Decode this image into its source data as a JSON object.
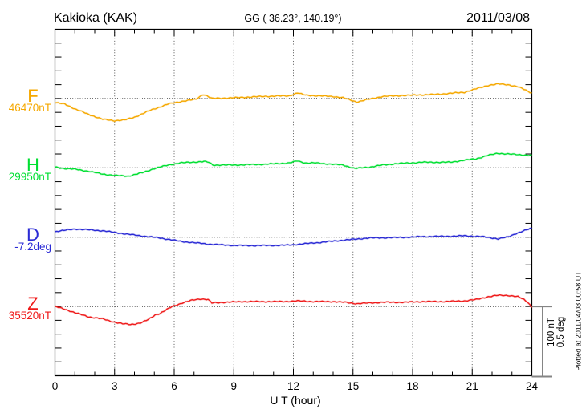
{
  "header": {
    "station": "Kakioka (KAK)",
    "coords": "GG ( 36.23°, 140.19°)",
    "date": "2011/03/08"
  },
  "x_axis": {
    "label": "U T (hour)",
    "tick_labels": [
      "0",
      "3",
      "6",
      "9",
      "12",
      "15",
      "18",
      "21",
      "24"
    ],
    "range_hours": [
      0,
      24
    ]
  },
  "scale_bar": {
    "label": "100 nT\n0.5 deg"
  },
  "plotted_at": "Plotted at 2011/04/08 00:58 UT",
  "chart_data": {
    "type": "line",
    "title": "Kakioka (KAK) magnetogram",
    "xlabel": "U T (hour)",
    "x_range": [
      0,
      24
    ],
    "grid": "dotted vertical every 3 hours, dotted horizontal at each component baseline",
    "y_scale": {
      "nT_per_scalebar": 100,
      "deg_per_scalebar": 0.5
    },
    "series": [
      {
        "name": "F",
        "unit": "nT",
        "base_label": "46470nT",
        "base_value": 46470,
        "color": "#F5A800",
        "points": [
          [
            0,
            46464
          ],
          [
            0.5,
            46462
          ],
          [
            1,
            46455
          ],
          [
            1.7,
            46447
          ],
          [
            2.4,
            46440
          ],
          [
            3,
            46438
          ],
          [
            3.5,
            46439
          ],
          [
            4,
            46443
          ],
          [
            4.8,
            46453
          ],
          [
            5.3,
            46458
          ],
          [
            5.7,
            46462
          ],
          [
            6.4,
            46466
          ],
          [
            7.1,
            46469
          ],
          [
            7.45,
            46476
          ],
          [
            7.65,
            46474
          ],
          [
            7.9,
            46470
          ],
          [
            9,
            46471
          ],
          [
            10.5,
            46473
          ],
          [
            11.8,
            46474
          ],
          [
            12.2,
            46478
          ],
          [
            12.6,
            46475
          ],
          [
            13.1,
            46474
          ],
          [
            14,
            46473
          ],
          [
            14.5,
            46471
          ],
          [
            15.2,
            46465
          ],
          [
            15.8,
            46469
          ],
          [
            16.5,
            46473
          ],
          [
            17.2,
            46474
          ],
          [
            18.1,
            46475
          ],
          [
            19.2,
            46476
          ],
          [
            20.6,
            46479
          ],
          [
            21.2,
            46484
          ],
          [
            21.8,
            46489
          ],
          [
            22.3,
            46491
          ],
          [
            22.8,
            46490
          ],
          [
            23.3,
            46487
          ],
          [
            23.7,
            46482
          ],
          [
            24,
            46478
          ]
        ]
      },
      {
        "name": "H",
        "unit": "nT",
        "base_label": "29950nT",
        "base_value": 29950,
        "color": "#00DF32",
        "points": [
          [
            0,
            29951
          ],
          [
            0.5,
            29949
          ],
          [
            1,
            29948
          ],
          [
            1.7,
            29945
          ],
          [
            2.4,
            29941
          ],
          [
            3,
            29939
          ],
          [
            3.7,
            29938
          ],
          [
            4.4,
            29943
          ],
          [
            5,
            29949
          ],
          [
            5.7,
            29954
          ],
          [
            6.3,
            29957
          ],
          [
            6.8,
            29958
          ],
          [
            7.5,
            29959
          ],
          [
            7.75,
            29958
          ],
          [
            7.95,
            29954
          ],
          [
            9,
            29954
          ],
          [
            10.5,
            29955
          ],
          [
            11.8,
            29957
          ],
          [
            12.2,
            29960
          ],
          [
            12.6,
            29957
          ],
          [
            13.1,
            29957
          ],
          [
            14.5,
            29954
          ],
          [
            15.1,
            29949
          ],
          [
            15.8,
            29951
          ],
          [
            16.5,
            29954
          ],
          [
            17.2,
            29956
          ],
          [
            18.5,
            29958
          ],
          [
            19.9,
            29958
          ],
          [
            20.6,
            29961
          ],
          [
            21.2,
            29963
          ],
          [
            21.8,
            29968
          ],
          [
            22.3,
            29971
          ],
          [
            22.8,
            29970
          ],
          [
            23.3,
            29969
          ],
          [
            24,
            29968
          ]
        ]
      },
      {
        "name": "D",
        "unit": "deg",
        "base_label": "-7.2deg",
        "base_value": -7.2,
        "color": "#2B2BD5",
        "points": [
          [
            0,
            -7.16
          ],
          [
            1,
            -7.141
          ],
          [
            2,
            -7.15
          ],
          [
            2.4,
            -7.154
          ],
          [
            3.7,
            -7.18
          ],
          [
            4.5,
            -7.193
          ],
          [
            5.3,
            -7.206
          ],
          [
            6.4,
            -7.232
          ],
          [
            7.8,
            -7.251
          ],
          [
            9,
            -7.26
          ],
          [
            10,
            -7.261
          ],
          [
            11,
            -7.26
          ],
          [
            11.8,
            -7.257
          ],
          [
            13.1,
            -7.241
          ],
          [
            14.5,
            -7.222
          ],
          [
            15.8,
            -7.206
          ],
          [
            17.2,
            -7.203
          ],
          [
            18.5,
            -7.196
          ],
          [
            20,
            -7.193
          ],
          [
            20.6,
            -7.19
          ],
          [
            21.5,
            -7.196
          ],
          [
            22.3,
            -7.212
          ],
          [
            22.8,
            -7.199
          ],
          [
            23.2,
            -7.174
          ],
          [
            24,
            -7.135
          ]
        ]
      },
      {
        "name": "Z",
        "unit": "nT",
        "base_label": "35520nT",
        "base_value": 35520,
        "color": "#EF1A1A",
        "points": [
          [
            0,
            35520
          ],
          [
            0.5,
            35516
          ],
          [
            1,
            35511
          ],
          [
            1.7,
            35505
          ],
          [
            2.4,
            35502
          ],
          [
            2.9,
            35498
          ],
          [
            3.4,
            35495
          ],
          [
            3.8,
            35494
          ],
          [
            4.3,
            35496
          ],
          [
            4.7,
            35501
          ],
          [
            5.05,
            35508
          ],
          [
            5.3,
            35510
          ],
          [
            5.9,
            35520
          ],
          [
            6.4,
            35525
          ],
          [
            6.9,
            35529
          ],
          [
            7.3,
            35531
          ],
          [
            7.7,
            35530
          ],
          [
            7.9,
            35525
          ],
          [
            8.5,
            35526
          ],
          [
            9.5,
            35527
          ],
          [
            10.5,
            35527
          ],
          [
            11.5,
            35527
          ],
          [
            12.2,
            35528
          ],
          [
            13,
            35527
          ],
          [
            14,
            35527
          ],
          [
            14.6,
            35526
          ],
          [
            15.2,
            35524
          ],
          [
            15.8,
            35525
          ],
          [
            16.5,
            35526
          ],
          [
            17.5,
            35526
          ],
          [
            18.5,
            35527
          ],
          [
            19.5,
            35527
          ],
          [
            20.6,
            35528
          ],
          [
            21.2,
            35530
          ],
          [
            21.8,
            35534
          ],
          [
            22.3,
            35536
          ],
          [
            22.8,
            35536
          ],
          [
            23.3,
            35534
          ],
          [
            23.6,
            35530
          ],
          [
            23.8,
            35526
          ],
          [
            24,
            35519
          ]
        ]
      }
    ]
  }
}
